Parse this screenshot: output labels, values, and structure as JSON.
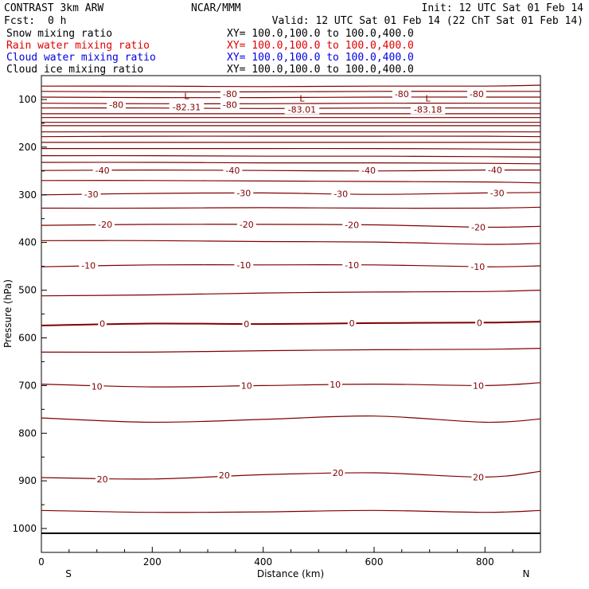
{
  "header": {
    "left": "CONTRAST  3km ARW",
    "center": "NCAR/MMM",
    "right": "Init: 12 UTC Sat 01 Feb 14",
    "fcst_label": "Fcst:",
    "fcst_value": "0 h",
    "valid": "Valid: 12 UTC Sat 01 Feb 14 (22 ChT Sat 01 Feb 14)"
  },
  "fields": [
    {
      "name": "Snow mixing ratio",
      "xy": "XY= 100.0,100.0 to 100.0,400.0",
      "color": "#000000"
    },
    {
      "name": "Rain water mixing ratio",
      "xy": "XY= 100.0,100.0 to 100.0,400.0",
      "color": "#e00000"
    },
    {
      "name": "Cloud water mixing ratio",
      "xy": "XY= 100.0,100.0 to 100.0,400.0",
      "color": "#0000e0"
    },
    {
      "name": "Cloud ice mixing ratio",
      "xy": "XY= 100.0,100.0 to 100.0,400.0",
      "color": "#000000"
    }
  ],
  "colors": {
    "contour": "#800000",
    "frame": "#000000",
    "surface": "#000000"
  },
  "chart_data": {
    "type": "contour",
    "xlabel": "Distance (km)",
    "ylabel": "Pressure (hPa)",
    "xlim": [
      0,
      900
    ],
    "ylim": [
      1050,
      50
    ],
    "x_ticks": [
      0,
      200,
      400,
      600,
      800
    ],
    "y_ticks": [
      100,
      200,
      300,
      400,
      500,
      600,
      700,
      800,
      900,
      1000
    ],
    "endpoint_labels": {
      "left": "S",
      "right": "N"
    },
    "surface_pressure": 1010,
    "contour_interval": 5,
    "contours": [
      {
        "value": -80,
        "x": [
          0,
          200,
          400,
          600,
          800,
          900
        ],
        "p": [
          72,
          72,
          73,
          72,
          72,
          70
        ]
      },
      {
        "value": -80,
        "x": [
          0,
          200,
          400,
          600,
          800,
          900
        ],
        "p": [
          83,
          84,
          84,
          83,
          83,
          83
        ]
      },
      {
        "value": -80,
        "x": [
          0,
          200,
          400,
          600,
          800,
          900
        ],
        "p": [
          95,
          96,
          96,
          95,
          95,
          95
        ]
      },
      {
        "value": -80,
        "x": [
          0,
          200,
          400,
          600,
          800,
          900
        ],
        "p": [
          108,
          109,
          109,
          108,
          108,
          108
        ]
      },
      {
        "value": -80,
        "x": [
          0,
          200,
          400,
          600,
          800,
          900
        ],
        "p": [
          118,
          118,
          119,
          118,
          118,
          118
        ]
      },
      {
        "value": -80,
        "x": [
          0,
          200,
          400,
          600,
          800,
          900
        ],
        "p": [
          130,
          130,
          130,
          130,
          130,
          130
        ]
      },
      {
        "value": -80,
        "x": [
          0,
          200,
          400,
          600,
          800,
          900
        ],
        "p": [
          138,
          138,
          138,
          138,
          138,
          138
        ]
      },
      {
        "value": -80,
        "x": [
          0,
          200,
          400,
          600,
          800,
          900
        ],
        "p": [
          148,
          148,
          148,
          148,
          148,
          148
        ]
      },
      {
        "value": -80,
        "x": [
          0,
          200,
          400,
          600,
          800,
          900
        ],
        "p": [
          155,
          155,
          155,
          155,
          155,
          155
        ]
      },
      {
        "value": -80,
        "x": [
          0,
          200,
          400,
          600,
          800,
          900
        ],
        "p": [
          168,
          168,
          168,
          168,
          168,
          168
        ]
      },
      {
        "value": -80,
        "x": [
          0,
          200,
          400,
          600,
          800,
          900
        ],
        "p": [
          178,
          177,
          177,
          177,
          177,
          178
        ]
      },
      {
        "value": -80,
        "x": [
          0,
          200,
          400,
          600,
          800,
          900
        ],
        "p": [
          190,
          190,
          190,
          190,
          190,
          190
        ]
      },
      {
        "value": -80,
        "x": [
          0,
          200,
          400,
          600,
          800,
          900
        ],
        "p": [
          203,
          203,
          203,
          203,
          204,
          205
        ]
      },
      {
        "value": -80,
        "x": [
          0,
          200,
          400,
          600,
          800,
          900
        ],
        "p": [
          218,
          218,
          219,
          219,
          220,
          221
        ]
      },
      {
        "value": -80,
        "x": [
          0,
          200,
          400,
          600,
          800,
          900
        ],
        "p": [
          232,
          232,
          233,
          233,
          234,
          235
        ]
      },
      {
        "value": -40,
        "x": [
          0,
          200,
          400,
          600,
          800,
          900
        ],
        "p": [
          249,
          248,
          249,
          250,
          248,
          248
        ]
      },
      {
        "value": -35,
        "x": [
          0,
          200,
          400,
          600,
          800,
          900
        ],
        "p": [
          270,
          270,
          271,
          272,
          273,
          275
        ]
      },
      {
        "value": -30,
        "x": [
          0,
          200,
          400,
          600,
          800,
          900
        ],
        "p": [
          300,
          297,
          296,
          299,
          296,
          295
        ]
      },
      {
        "value": -25,
        "x": [
          0,
          200,
          400,
          600,
          800,
          900
        ],
        "p": [
          328,
          328,
          327,
          328,
          328,
          326
        ]
      },
      {
        "value": -20,
        "x": [
          0,
          200,
          400,
          600,
          800,
          900
        ],
        "p": [
          364,
          362,
          362,
          363,
          368,
          366
        ]
      },
      {
        "value": -15,
        "x": [
          0,
          200,
          400,
          600,
          800,
          900
        ],
        "p": [
          396,
          396,
          398,
          399,
          404,
          402
        ]
      },
      {
        "value": -10,
        "x": [
          0,
          200,
          400,
          600,
          800,
          900
        ],
        "p": [
          451,
          447,
          447,
          447,
          451,
          449
        ]
      },
      {
        "value": -5,
        "x": [
          0,
          200,
          400,
          600,
          800,
          900
        ],
        "p": [
          512,
          510,
          506,
          504,
          503,
          500
        ]
      },
      {
        "value": 0,
        "x": [
          0,
          200,
          400,
          600,
          800,
          900
        ],
        "p": [
          574,
          570,
          571,
          569,
          568,
          566
        ]
      },
      {
        "value": 5,
        "x": [
          0,
          200,
          400,
          600,
          800,
          900
        ],
        "p": [
          630,
          630,
          627,
          625,
          624,
          622
        ]
      },
      {
        "value": 10,
        "x": [
          0,
          200,
          400,
          600,
          800,
          900
        ],
        "p": [
          697,
          703,
          700,
          697,
          700,
          694
        ]
      },
      {
        "value": 15,
        "x": [
          0,
          200,
          400,
          600,
          800,
          900
        ],
        "p": [
          768,
          777,
          771,
          764,
          777,
          770
        ]
      },
      {
        "value": 20,
        "x": [
          0,
          200,
          400,
          600,
          800,
          900
        ],
        "p": [
          893,
          896,
          887,
          883,
          892,
          880
        ]
      },
      {
        "value": 25,
        "x": [
          0,
          200,
          400,
          600,
          800,
          900
        ],
        "p": [
          962,
          966,
          965,
          962,
          966,
          962
        ]
      }
    ],
    "line_labels": [
      {
        "text": "-80",
        "x": 135,
        "p": 111
      },
      {
        "text": "-80",
        "x": 340,
        "p": 88
      },
      {
        "text": "-80",
        "x": 340,
        "p": 111
      },
      {
        "text": "-80",
        "x": 650,
        "p": 88
      },
      {
        "text": "-80",
        "x": 785,
        "p": 88
      },
      {
        "text": "-40",
        "x": 110,
        "p": 249
      },
      {
        "text": "-40",
        "x": 345,
        "p": 249
      },
      {
        "text": "-40",
        "x": 590,
        "p": 249
      },
      {
        "text": "-40",
        "x": 818,
        "p": 248
      },
      {
        "text": "-30",
        "x": 90,
        "p": 299
      },
      {
        "text": "-30",
        "x": 365,
        "p": 296
      },
      {
        "text": "-30",
        "x": 540,
        "p": 298
      },
      {
        "text": "-30",
        "x": 822,
        "p": 296
      },
      {
        "text": "-20",
        "x": 115,
        "p": 362
      },
      {
        "text": "-20",
        "x": 370,
        "p": 362
      },
      {
        "text": "-20",
        "x": 560,
        "p": 363
      },
      {
        "text": "-20",
        "x": 788,
        "p": 368
      },
      {
        "text": "-10",
        "x": 85,
        "p": 448
      },
      {
        "text": "-10",
        "x": 365,
        "p": 447
      },
      {
        "text": "-10",
        "x": 560,
        "p": 447
      },
      {
        "text": "-10",
        "x": 787,
        "p": 451
      },
      {
        "text": "0",
        "x": 110,
        "p": 570
      },
      {
        "text": "0",
        "x": 370,
        "p": 571
      },
      {
        "text": "0",
        "x": 560,
        "p": 569
      },
      {
        "text": "0",
        "x": 790,
        "p": 568
      },
      {
        "text": "10",
        "x": 100,
        "p": 702
      },
      {
        "text": "10",
        "x": 370,
        "p": 700
      },
      {
        "text": "10",
        "x": 530,
        "p": 698
      },
      {
        "text": "10",
        "x": 788,
        "p": 700
      },
      {
        "text": "20",
        "x": 110,
        "p": 896
      },
      {
        "text": "20",
        "x": 330,
        "p": 888
      },
      {
        "text": "20",
        "x": 535,
        "p": 883
      },
      {
        "text": "20",
        "x": 788,
        "p": 892
      }
    ],
    "minima": [
      {
        "symbol": "L",
        "value": "-82.31",
        "x": 262,
        "p": 104
      },
      {
        "symbol": "L",
        "value": "-83.01",
        "x": 470,
        "p": 109
      },
      {
        "symbol": "L",
        "value": "-83.18",
        "x": 697,
        "p": 109
      }
    ]
  }
}
